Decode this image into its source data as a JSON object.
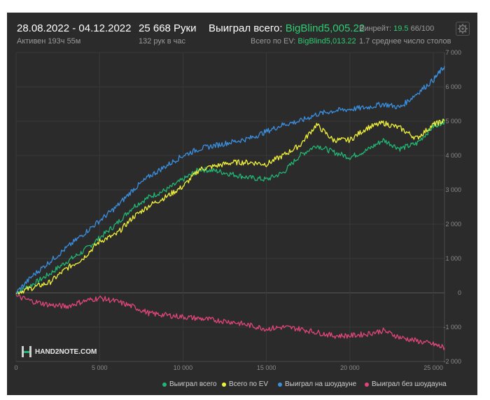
{
  "header": {
    "date_range": "28.08.2022 - 04.12.2022",
    "active": "Активен 193ч 55м",
    "hands": "25 668 Руки",
    "hands_per_hour": "132 рук в час",
    "won_label": "Выиграл всего:",
    "won_value": "BigBlind5,005.22",
    "ev_label": "Всего по EV:",
    "ev_value": "BigBlind5,013.22",
    "winrate_label": "Винрейт:",
    "winrate_value": "19.5",
    "winrate_rest": "66/100",
    "tables": "1.7 среднее число столов"
  },
  "logo_text": "HAND2NOTE.COM",
  "colors": {
    "total": "#22b573",
    "ev": "#f2f23a",
    "showdown": "#3b8fe0",
    "nonshowdown": "#e0457b"
  },
  "chart_data": {
    "type": "line",
    "x_ticks": [
      "0",
      "5 000",
      "10 000",
      "15 000",
      "20 000",
      "25 000"
    ],
    "y_ticks": [
      "7 000",
      "6 000",
      "5 000",
      "4 000",
      "3 000",
      "2 000",
      "1 000",
      "0",
      "-1 000",
      "-2 000"
    ],
    "xlim": [
      0,
      25668
    ],
    "ylim": [
      -2000,
      7000
    ],
    "grid": true,
    "series": [
      {
        "name": "Выиграл всего",
        "color_key": "total",
        "x": [
          0,
          1000,
          2000,
          3000,
          4000,
          5000,
          6000,
          7000,
          8000,
          9000,
          10000,
          11000,
          12000,
          13000,
          14000,
          15000,
          16000,
          17000,
          18000,
          19000,
          20000,
          21000,
          22000,
          23000,
          24000,
          25000,
          25668
        ],
        "y": [
          0,
          250,
          550,
          900,
          1200,
          1600,
          2000,
          2500,
          2800,
          3000,
          3300,
          3600,
          3550,
          3450,
          3350,
          3300,
          3500,
          4000,
          4300,
          4100,
          3950,
          4150,
          4450,
          4200,
          4350,
          4850,
          5005
        ]
      },
      {
        "name": "Всего по EV",
        "color_key": "ev",
        "x": [
          0,
          1000,
          2000,
          3000,
          4000,
          5000,
          6000,
          7000,
          8000,
          9000,
          10000,
          11000,
          12000,
          13000,
          14000,
          15000,
          16000,
          17000,
          18000,
          19000,
          20000,
          21000,
          22000,
          23000,
          24000,
          25000,
          25668
        ],
        "y": [
          0,
          150,
          300,
          700,
          1000,
          1500,
          1700,
          2200,
          2550,
          2800,
          3100,
          3600,
          3700,
          3800,
          3800,
          3750,
          4000,
          4300,
          4900,
          4450,
          4450,
          4800,
          4950,
          4800,
          4500,
          4900,
          5013
        ]
      },
      {
        "name": "Выиграл на шоудауне",
        "color_key": "showdown",
        "x": [
          0,
          1000,
          2000,
          3000,
          4000,
          5000,
          6000,
          7000,
          8000,
          9000,
          10000,
          11000,
          12000,
          13000,
          14000,
          15000,
          16000,
          17000,
          18000,
          19000,
          20000,
          21000,
          22000,
          23000,
          24000,
          25000,
          25668
        ],
        "y": [
          0,
          500,
          900,
          1300,
          1700,
          2100,
          2500,
          3000,
          3400,
          3700,
          4000,
          4200,
          4300,
          4400,
          4500,
          4700,
          4900,
          5000,
          5200,
          5300,
          5350,
          5400,
          5500,
          5400,
          5800,
          6200,
          6600
        ]
      },
      {
        "name": "Выиграл без шоудауна",
        "color_key": "nonshowdown",
        "x": [
          0,
          1000,
          2000,
          3000,
          4000,
          5000,
          6000,
          7000,
          8000,
          9000,
          10000,
          11000,
          12000,
          13000,
          14000,
          15000,
          16000,
          17000,
          18000,
          19000,
          20000,
          21000,
          22000,
          23000,
          24000,
          25000,
          25668
        ],
        "y": [
          -100,
          -250,
          -350,
          -400,
          -250,
          -150,
          -250,
          -400,
          -600,
          -650,
          -700,
          -750,
          -800,
          -850,
          -950,
          -1050,
          -1000,
          -1050,
          -1150,
          -1250,
          -1250,
          -1200,
          -1100,
          -1300,
          -1400,
          -1500,
          -1600
        ]
      }
    ]
  }
}
